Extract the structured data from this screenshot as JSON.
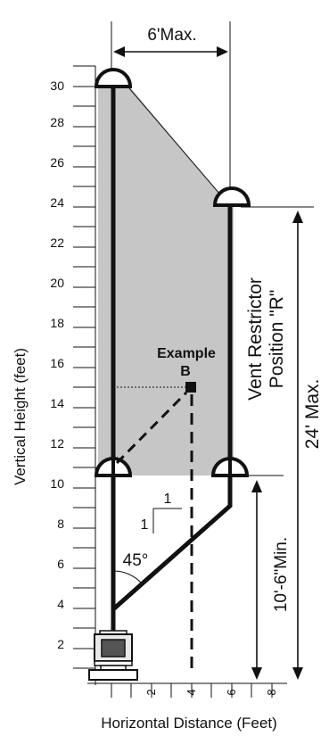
{
  "axes": {
    "y_label": "Vertical Height (feet)",
    "x_label": "Horizontal Distance (Feet)",
    "y_ticks": [
      "2",
      "4",
      "6",
      "8",
      "10",
      "12",
      "14",
      "16",
      "18",
      "20",
      "22",
      "24",
      "26",
      "28",
      "30"
    ],
    "x_ticks": [
      "2",
      "4",
      "6",
      "8"
    ]
  },
  "labels": {
    "horizontal_max": "6'Max.",
    "vertical_max": "24' Max.",
    "vertical_min": "10'-6\"Min.",
    "vent_restrictor_line1": "Vent Restrictor",
    "vent_restrictor_line2": "Position \"R\"",
    "example_line1": "Example",
    "example_line2": "B",
    "slope_rise": "1",
    "slope_run": "1",
    "angle": "45°"
  },
  "colors": {
    "shaded_region": "#c6c6c6",
    "lines": "#111111"
  }
}
